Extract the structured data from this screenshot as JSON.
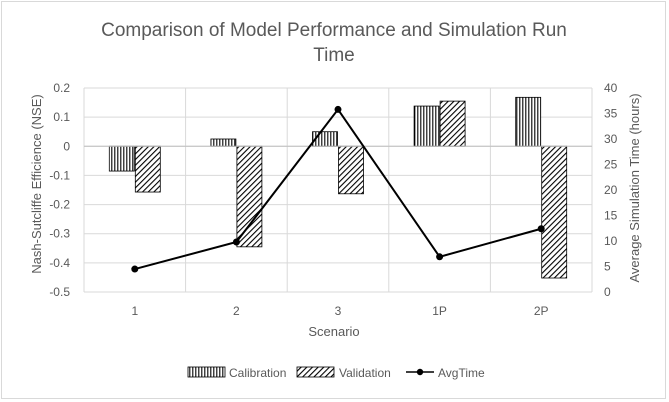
{
  "chart_data": {
    "type": "bar",
    "title_lines": [
      "Comparison of Model Performance and Simulation Run",
      "Time"
    ],
    "xlabel": "Scenario",
    "ylabel": "Nash-Sutcliffe Efficience (NSE)",
    "y2label": "Average Simulation Time (hours)",
    "categories": [
      "1",
      "2",
      "3",
      "1P",
      "2P"
    ],
    "ylim": [
      -0.5,
      0.2
    ],
    "yticks": [
      -0.5,
      -0.4,
      -0.3,
      -0.2,
      -0.1,
      0,
      0.1,
      0.2
    ],
    "ytick_labels": [
      "-0.5",
      "-0.4",
      "-0.3",
      "-0.2",
      "-0.1",
      "0",
      "0.1",
      "0.2"
    ],
    "y2lim": [
      0,
      40
    ],
    "y2ticks": [
      0,
      5,
      10,
      15,
      20,
      25,
      30,
      35,
      40
    ],
    "y2tick_labels": [
      "0",
      "5",
      "10",
      "15",
      "20",
      "25",
      "30",
      "35",
      "40"
    ],
    "series": [
      {
        "name": "Calibration",
        "type": "bar",
        "axis": "left",
        "pattern": "vertical-lines",
        "values": [
          -0.085,
          0.025,
          0.05,
          0.138,
          0.168
        ]
      },
      {
        "name": "Validation",
        "type": "bar",
        "axis": "left",
        "pattern": "diagonal-lines",
        "values": [
          -0.157,
          -0.345,
          -0.163,
          0.155,
          -0.452
        ]
      },
      {
        "name": "AvgTime",
        "type": "line",
        "axis": "right",
        "marker": "circle",
        "values": [
          4.5,
          9.8,
          35.8,
          6.9,
          12.4
        ]
      }
    ],
    "grid": true,
    "legend_position": "bottom"
  },
  "colors": {
    "text": "#595959",
    "grid": "#d9d9d9",
    "series": "#000000"
  }
}
